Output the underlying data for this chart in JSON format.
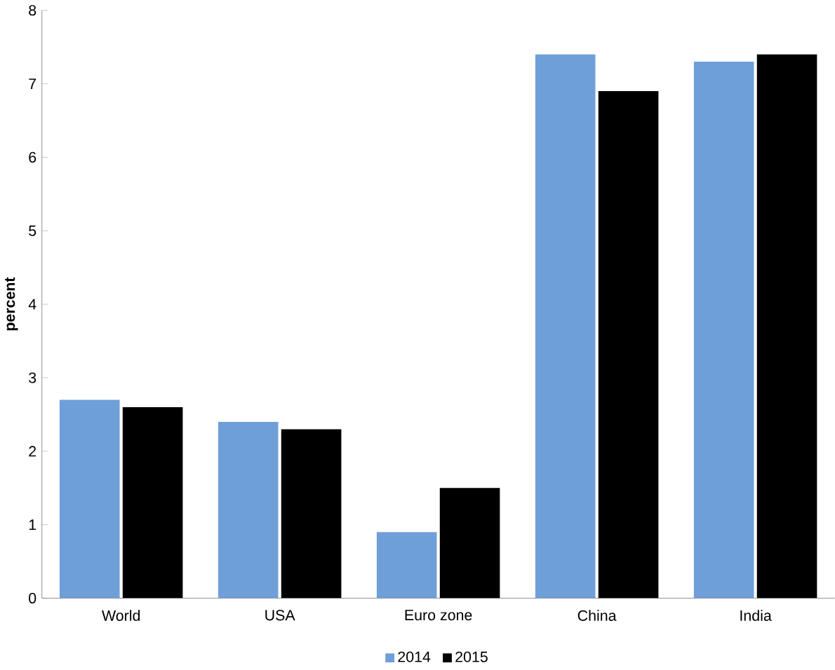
{
  "chart_data": {
    "type": "bar",
    "ylabel": "percent",
    "categories": [
      "World",
      "USA",
      "Euro zone",
      "China",
      "India"
    ],
    "series": [
      {
        "name": "2014",
        "color": "#6f9fd8",
        "values": [
          2.7,
          2.4,
          0.9,
          7.4,
          7.3
        ]
      },
      {
        "name": "2015",
        "color": "#000000",
        "values": [
          2.6,
          2.3,
          1.5,
          6.9,
          7.4
        ]
      }
    ],
    "ylim": [
      0,
      8
    ],
    "yticks": [
      0,
      1,
      2,
      3,
      4,
      5,
      6,
      7,
      8
    ],
    "legend": "bottom"
  }
}
